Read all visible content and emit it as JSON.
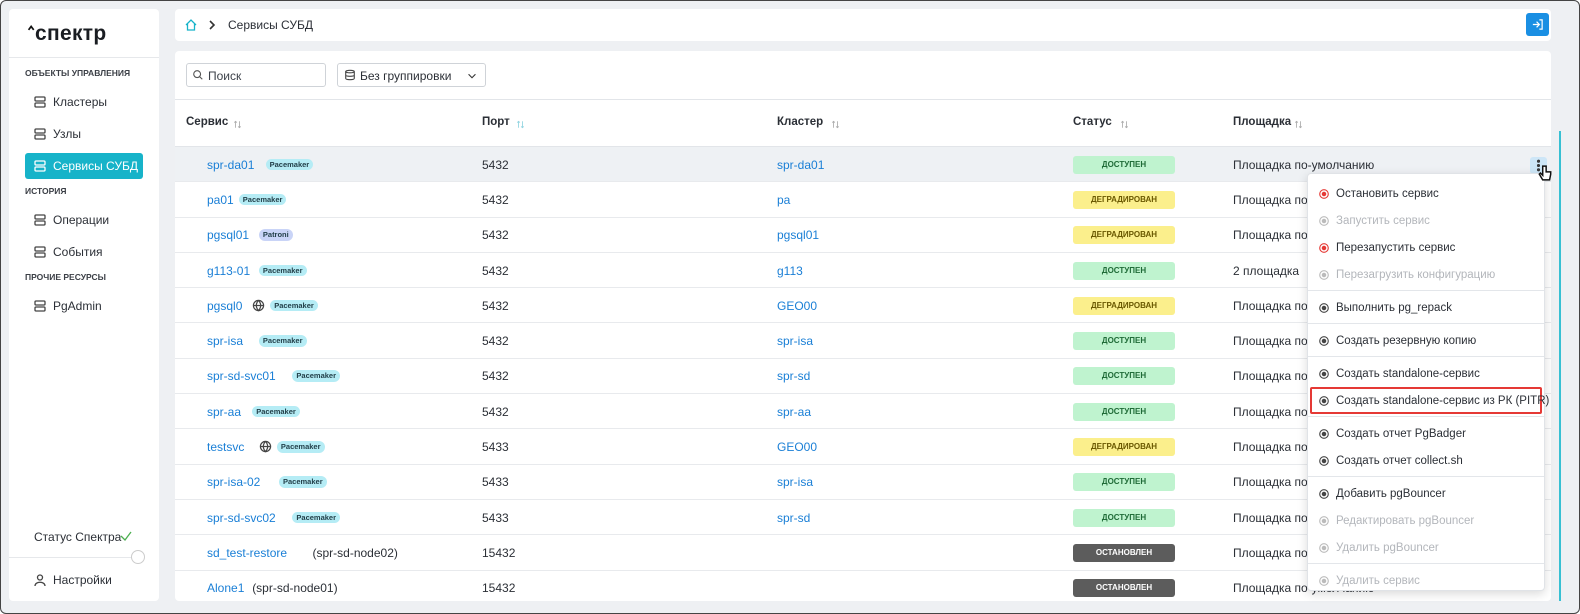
{
  "brand": "спектр",
  "sidebar": {
    "sections": [
      {
        "title": "ОБЪЕКТЫ УПРАВЛЕНИЯ",
        "items": [
          {
            "label": "Кластеры"
          },
          {
            "label": "Узлы"
          },
          {
            "label": "Сервисы СУБД",
            "active": true
          }
        ]
      },
      {
        "title": "ИСТОРИЯ",
        "items": [
          {
            "label": "Операции"
          },
          {
            "label": "События"
          }
        ]
      },
      {
        "title": "ПРОЧИЕ РЕСУРСЫ",
        "items": [
          {
            "label": "PgAdmin"
          }
        ]
      }
    ],
    "status": "Статус Спектра",
    "settings": "Настройки"
  },
  "breadcrumb": "Сервисы СУБД",
  "toolbar": {
    "search_placeholder": "Поиск",
    "grouping": "Без группировки"
  },
  "table": {
    "columns": [
      "Сервис",
      "Порт",
      "Кластер",
      "Статус",
      "Площадка"
    ],
    "rows": [
      {
        "service": "spr-da01",
        "tag": "Pacemaker",
        "port": "5432",
        "cluster": "spr-da01",
        "status": {
          "label": "ДОСТУПЕН",
          "color": "#bff3cf",
          "text_color": "#1f6b37"
        },
        "site": "Площадка по-умолчанию"
      },
      {
        "service": "pa01",
        "tag": "Pacemaker",
        "port": "5432",
        "cluster": "pa",
        "status": {
          "label": "ДЕГРАДИРОВАН",
          "color": "#fbef8c",
          "text_color": "#6a5800"
        },
        "site": "Площадка по-умолчанию"
      },
      {
        "service": "pgsql01",
        "tag": "Patroni",
        "tag_color": "#c9d4f7",
        "port": "5432",
        "cluster": "pgsql01",
        "status": {
          "label": "ДЕГРАДИРОВАН",
          "color": "#fbef8c",
          "text_color": "#6a5800"
        },
        "site": "Площадка по-умолчанию"
      },
      {
        "service": "g113-01",
        "tag": "Pacemaker",
        "port": "5432",
        "cluster": "g113",
        "status": {
          "label": "ДОСТУПЕН",
          "color": "#bff3cf",
          "text_color": "#1f6b37"
        },
        "site": "2 площадка"
      },
      {
        "service": "pgsql0",
        "globe": true,
        "tag": "Pacemaker",
        "port": "5432",
        "cluster": "GEO00",
        "status": {
          "label": "ДЕГРАДИРОВАН",
          "color": "#fbef8c",
          "text_color": "#6a5800"
        },
        "site": "Площадка по-умолчанию"
      },
      {
        "service": "spr-isa",
        "tag": "Pacemaker",
        "port": "5432",
        "cluster": "spr-isa",
        "status": {
          "label": "ДОСТУПЕН",
          "color": "#bff3cf",
          "text_color": "#1f6b37"
        },
        "site": "Площадка по-умолчанию"
      },
      {
        "service": "spr-sd-svc01",
        "tag": "Pacemaker",
        "port": "5432",
        "cluster": "spr-sd",
        "status": {
          "label": "ДОСТУПЕН",
          "color": "#bff3cf",
          "text_color": "#1f6b37"
        },
        "site": "Площадка по-умолчанию"
      },
      {
        "service": "spr-aa",
        "tag": "Pacemaker",
        "port": "5432",
        "cluster": "spr-aa",
        "status": {
          "label": "ДОСТУПЕН",
          "color": "#bff3cf",
          "text_color": "#1f6b37"
        },
        "site": "Площадка по-умолчанию"
      },
      {
        "service": "testsvc",
        "globe": true,
        "tag": "Pacemaker",
        "port": "5433",
        "cluster": "GEO00",
        "status": {
          "label": "ДЕГРАДИРОВАН",
          "color": "#fbef8c",
          "text_color": "#6a5800"
        },
        "site": "Площадка по-умолчанию"
      },
      {
        "service": "spr-isa-02",
        "tag": "Pacemaker",
        "port": "5433",
        "cluster": "spr-isa",
        "status": {
          "label": "ДОСТУПЕН",
          "color": "#bff3cf",
          "text_color": "#1f6b37"
        },
        "site": "Площадка по-умолчанию"
      },
      {
        "service": "spr-sd-svc02",
        "tag": "Pacemaker",
        "port": "5433",
        "cluster": "spr-sd",
        "status": {
          "label": "ДОСТУПЕН",
          "color": "#bff3cf",
          "text_color": "#1f6b37"
        },
        "site": "Площадка по-умолчанию"
      },
      {
        "service": "sd_test-restore",
        "node": "(spr-sd-node02)",
        "port": "15432",
        "status": {
          "label": "ОСТАНОВЛЕН",
          "color": "#5c5c5c",
          "text_color": "#ffffff"
        },
        "site": "Площадка по-умолчанию"
      },
      {
        "service": "Alone1",
        "node": "(spr-sd-node01)",
        "port": "15432",
        "status": {
          "label": "ОСТАНОВЛЕН",
          "color": "#5c5c5c",
          "text_color": "#ffffff"
        },
        "site": "Площадка по-умолчанию"
      }
    ]
  },
  "menu": {
    "groups": [
      [
        {
          "label": "Остановить сервис",
          "enabled": true,
          "icon_color": "#e53935"
        },
        {
          "label": "Запустить сервис",
          "enabled": false
        },
        {
          "label": "Перезапустить сервис",
          "enabled": true,
          "icon_color": "#e53935"
        },
        {
          "label": "Перезагрузить конфигурацию",
          "enabled": false
        }
      ],
      [
        {
          "label": "Выполнить pg_repack",
          "enabled": true
        }
      ],
      [
        {
          "label": "Создать резервную копию",
          "enabled": true
        }
      ],
      [
        {
          "label": "Создать standalone-сервис",
          "enabled": true
        },
        {
          "label": "Создать standalone-сервис из РК (PITR)",
          "enabled": true,
          "highlighted": true
        }
      ],
      [
        {
          "label": "Создать отчет PgBadger",
          "enabled": true
        },
        {
          "label": "Создать отчет collect.sh",
          "enabled": true
        }
      ],
      [
        {
          "label": "Добавить pgBouncer",
          "enabled": true
        },
        {
          "label": "Редактировать pgBouncer",
          "enabled": false
        },
        {
          "label": "Удалить pgBouncer",
          "enabled": false
        }
      ],
      [
        {
          "label": "Удалить сервис",
          "enabled": false
        }
      ]
    ]
  }
}
